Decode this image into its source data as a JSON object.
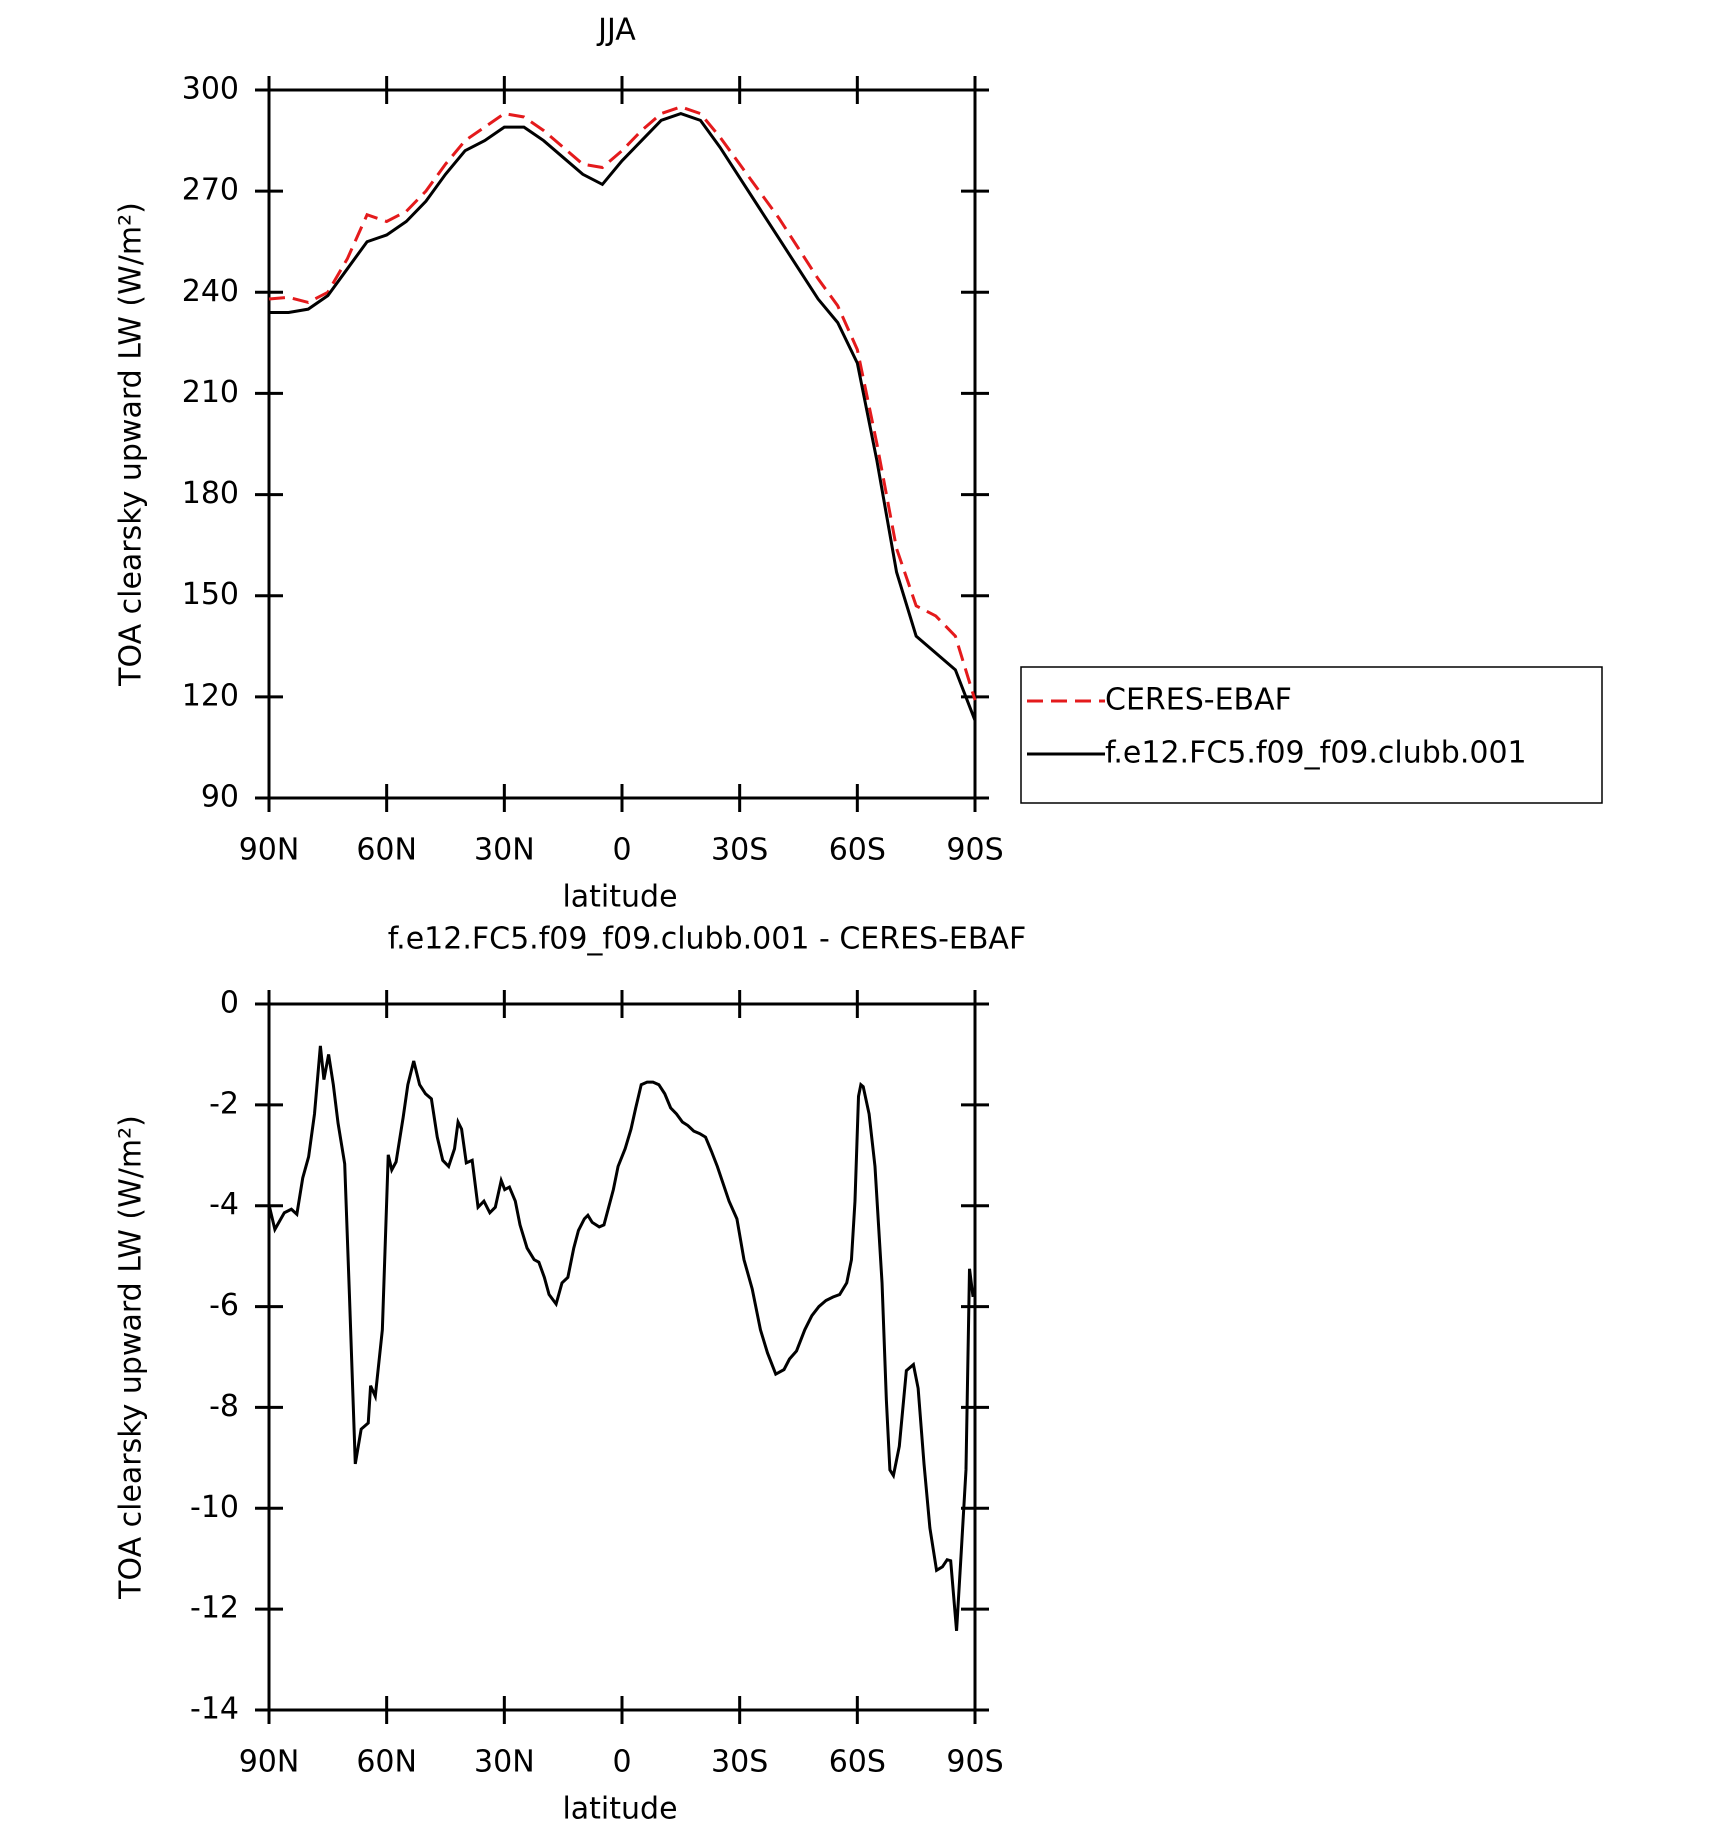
{
  "chart_data": [
    {
      "type": "line",
      "title": "JJA",
      "x_label": "latitude",
      "y_label": "TOA clearsky upward LW (W/m²)",
      "xlim": [
        90,
        -90
      ],
      "xticks": [
        {
          "value": 90,
          "label": "90N"
        },
        {
          "value": 60,
          "label": "60N"
        },
        {
          "value": 30,
          "label": "30N"
        },
        0,
        {
          "value": -30,
          "label": "30S"
        },
        {
          "value": -60,
          "label": "60S"
        },
        {
          "value": -90,
          "label": "90S"
        }
      ],
      "ylim": [
        90,
        300
      ],
      "yticks": [
        90,
        120,
        150,
        180,
        210,
        240,
        270,
        300
      ],
      "legend": "right",
      "x": [
        90,
        85,
        80,
        75,
        70,
        65,
        60,
        55,
        50,
        45,
        40,
        35,
        30,
        25,
        20,
        15,
        10,
        5,
        0,
        -5,
        -10,
        -15,
        -20,
        -25,
        -30,
        -35,
        -40,
        -45,
        -50,
        -55,
        -60,
        -65,
        -70,
        -75,
        -80,
        -85,
        -90
      ],
      "series": [
        {
          "name": "CERES-EBAF",
          "color": "#e41a1c",
          "linestyle": "dashed",
          "values": [
            238,
            238.5,
            237,
            240,
            250,
            263,
            261,
            264,
            270,
            278,
            285,
            289,
            293,
            292,
            288,
            283,
            278,
            277,
            282,
            288,
            293,
            295,
            293,
            286,
            278,
            270,
            262,
            253,
            244,
            236,
            223,
            195,
            164,
            147,
            144,
            138,
            119
          ]
        },
        {
          "name": "f.e12.FC5.f09_f09.clubb.001",
          "color": "#000000",
          "linestyle": "solid",
          "values": [
            234,
            234,
            235,
            239,
            247,
            255,
            257,
            261,
            267,
            275,
            282,
            285,
            289,
            289,
            285,
            280,
            275,
            272,
            279,
            285,
            291,
            293,
            291,
            283,
            274,
            265,
            256,
            247,
            238,
            231,
            219,
            190,
            157,
            138,
            133,
            128,
            113
          ]
        }
      ]
    },
    {
      "type": "line",
      "title": "f.e12.FC5.f09_f09.clubb.001 - CERES-EBAF",
      "x_label": "latitude",
      "y_label": "TOA clearsky upward LW (W/m²)",
      "xlim": [
        90,
        -90
      ],
      "xticks": [
        {
          "value": 90,
          "label": "90N"
        },
        {
          "value": 60,
          "label": "60N"
        },
        {
          "value": 30,
          "label": "30N"
        },
        0,
        {
          "value": -30,
          "label": "30S"
        },
        {
          "value": -60,
          "label": "60S"
        },
        {
          "value": -90,
          "label": "90S"
        }
      ],
      "ylim": [
        -14,
        0
      ],
      "yticks": [
        -14,
        -12,
        -10,
        -8,
        -6,
        -4,
        -2,
        0
      ],
      "x": [
        90,
        88.5,
        86.1,
        84.3,
        82.9,
        81.4,
        79.9,
        78.4,
        76.9,
        76.0,
        74.8,
        73.6,
        72.4,
        70.7,
        69.5,
        68.0,
        66.5,
        64.7,
        64.1,
        62.9,
        61.1,
        59.6,
        58.7,
        57.6,
        55.8,
        54.6,
        53.1,
        51.6,
        50.1,
        48.6,
        47.1,
        45.7,
        44.2,
        42.7,
        41.8,
        40.9,
        39.7,
        38.2,
        36.7,
        35.2,
        33.7,
        32.3,
        30.8,
        29.9,
        28.7,
        27.2,
        26.0,
        24.2,
        22.4,
        21.2,
        19.8,
        18.6,
        16.8,
        15.3,
        13.8,
        12.3,
        11.1,
        9.6,
        8.7,
        7.6,
        5.8,
        4.6,
        3.4,
        2.2,
        1.0,
        -0.8,
        -2.3,
        -3.5,
        -4.9,
        -6.4,
        -7.9,
        -9.4,
        -10.9,
        -12.4,
        -13.9,
        -15.4,
        -16.8,
        -18.3,
        -19.8,
        -21.3,
        -22.8,
        -24.3,
        -27.3,
        -29.3,
        -31.1,
        -33.2,
        -35.3,
        -37.1,
        -39.2,
        -41.3,
        -42.7,
        -44.5,
        -46.6,
        -48.4,
        -50.2,
        -52.0,
        -53.8,
        -55.5,
        -57.3,
        -58.5,
        -59.4,
        -60.3,
        -60.9,
        -61.5,
        -63.0,
        -64.5,
        -66.3,
        -67.4,
        -68.3,
        -69.2,
        -70.7,
        -72.5,
        -74.3,
        -75.5,
        -77.0,
        -78.5,
        -80.2,
        -81.7,
        -82.9,
        -83.8,
        -85.3,
        -86.5,
        -87.7,
        -88.6,
        -89.5
      ],
      "color": "#000000",
      "values": [
        -3.98,
        -4.47,
        -4.14,
        -4.07,
        -4.17,
        -3.45,
        -3.03,
        -2.18,
        -0.83,
        -1.5,
        -1.0,
        -1.6,
        -2.36,
        -3.17,
        -5.76,
        -9.12,
        -8.43,
        -8.31,
        -7.57,
        -7.78,
        -6.46,
        -2.99,
        -3.29,
        -3.13,
        -2.25,
        -1.6,
        -1.13,
        -1.6,
        -1.78,
        -1.88,
        -2.64,
        -3.1,
        -3.22,
        -2.87,
        -2.34,
        -2.48,
        -3.15,
        -3.1,
        -4.03,
        -3.91,
        -4.14,
        -4.03,
        -3.5,
        -3.68,
        -3.63,
        -3.91,
        -4.38,
        -4.84,
        -5.07,
        -5.12,
        -5.42,
        -5.76,
        -5.95,
        -5.53,
        -5.42,
        -4.84,
        -4.49,
        -4.26,
        -4.19,
        -4.33,
        -4.42,
        -4.38,
        -4.03,
        -3.68,
        -3.22,
        -2.87,
        -2.48,
        -2.06,
        -1.6,
        -1.55,
        -1.55,
        -1.6,
        -1.78,
        -2.06,
        -2.18,
        -2.34,
        -2.41,
        -2.52,
        -2.57,
        -2.64,
        -2.92,
        -3.22,
        -3.91,
        -4.26,
        -5.07,
        -5.65,
        -6.46,
        -6.92,
        -7.34,
        -7.25,
        -7.04,
        -6.88,
        -6.46,
        -6.18,
        -6.0,
        -5.88,
        -5.81,
        -5.76,
        -5.53,
        -5.07,
        -3.91,
        -1.83,
        -1.6,
        -1.64,
        -2.18,
        -3.22,
        -5.53,
        -7.85,
        -9.24,
        -9.35,
        -8.77,
        -7.27,
        -7.15,
        -7.62,
        -9.12,
        -10.39,
        -11.23,
        -11.16,
        -11.02,
        -11.04,
        -12.43,
        -10.86,
        -9.24,
        -5.25,
        -5.81
      ]
    }
  ]
}
